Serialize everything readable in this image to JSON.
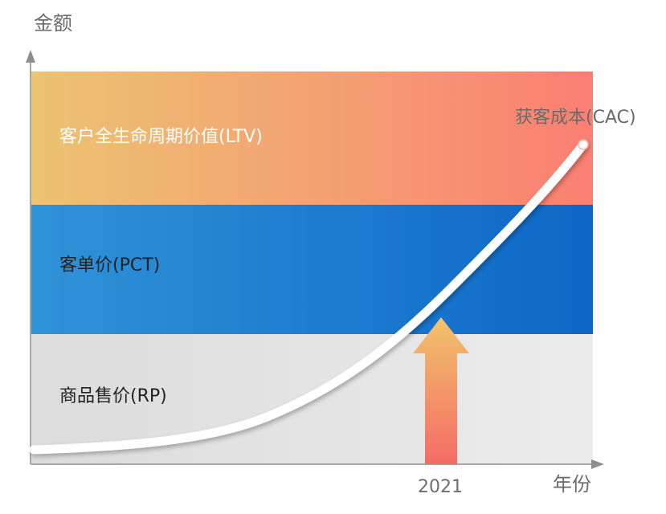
{
  "axes": {
    "y_label": "金额",
    "x_label": "年份"
  },
  "bands": {
    "ltv": {
      "label": "客户全生命周期价值(LTV)",
      "color_start": "#ecc472",
      "color_end": "#fb7f73"
    },
    "pct": {
      "label": "客单价(PCT)",
      "color_start": "#2f93d8",
      "color_end": "#0d67c7"
    },
    "rp": {
      "label": "商品售价(RP)",
      "color_start": "#dcdcdc",
      "color_end": "#ececec"
    }
  },
  "curve": {
    "label": "获客成本(CAC)",
    "color": "#ffffff"
  },
  "marker": {
    "year": "2021",
    "arrow_color_top": "#f2c36c",
    "arrow_color_bottom": "#f46c66"
  }
}
